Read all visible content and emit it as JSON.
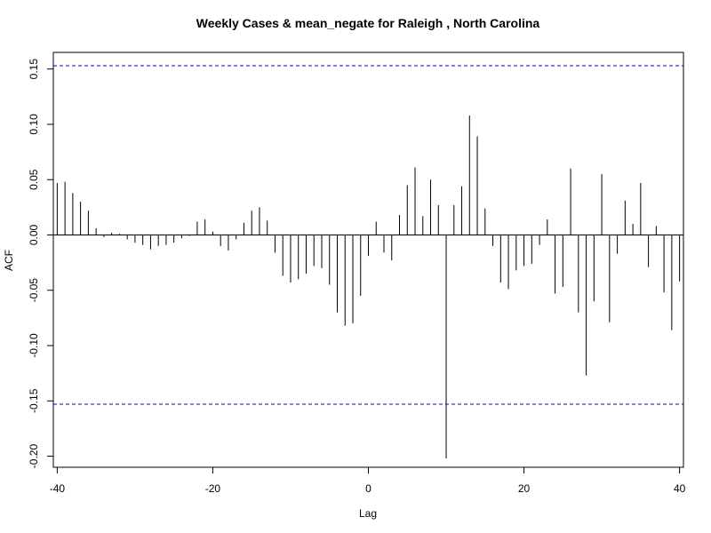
{
  "chart_data": {
    "type": "bar",
    "title": "Weekly Cases & mean_negate for Raleigh , North Carolina",
    "xlabel": "Lag",
    "ylabel": "ACF",
    "xlim": [
      -40.5,
      40.5
    ],
    "ylim": [
      -0.21,
      0.165
    ],
    "x_ticks": [
      -40,
      -20,
      0,
      20,
      40
    ],
    "y_ticks": [
      -0.2,
      -0.15,
      -0.1,
      -0.05,
      0.0,
      0.05,
      0.1,
      0.15
    ],
    "y_tick_labels": [
      "-0.20",
      "-0.15",
      "-0.10",
      "-0.05",
      "0.00",
      "0.05",
      "0.10",
      "0.15"
    ],
    "confidence_limits": [
      0.153,
      -0.153
    ],
    "confidence_color": "#0000cc",
    "bar_color": "#000000",
    "series": [
      {
        "lags": [
          -40,
          -39,
          -38,
          -37,
          -36,
          -35,
          -34,
          -33,
          -32,
          -31,
          -30,
          -29,
          -28,
          -27,
          -26,
          -25,
          -24,
          -23,
          -22,
          -21,
          -20,
          -19,
          -18,
          -17,
          -16,
          -15,
          -14,
          -13,
          -12,
          -11,
          -10,
          -9,
          -8,
          -7,
          -6,
          -5,
          -4,
          -3,
          -2,
          -1,
          0,
          1,
          2,
          3,
          4,
          5,
          6,
          7,
          8,
          9,
          10,
          11,
          12,
          13,
          14,
          15,
          16,
          17,
          18,
          19,
          20,
          21,
          22,
          23,
          24,
          25,
          26,
          27,
          28,
          29,
          30,
          31,
          32,
          33,
          34,
          35,
          36,
          37,
          38,
          39,
          40
        ],
        "values": [
          0.047,
          0.048,
          0.038,
          0.03,
          0.022,
          0.006,
          -0.002,
          0.002,
          0.001,
          -0.004,
          -0.007,
          -0.009,
          -0.013,
          -0.01,
          -0.009,
          -0.007,
          -0.003,
          -0.001,
          0.012,
          0.014,
          0.003,
          -0.01,
          -0.014,
          -0.004,
          0.011,
          0.022,
          0.025,
          0.013,
          -0.016,
          -0.037,
          -0.043,
          -0.04,
          -0.035,
          -0.028,
          -0.03,
          -0.045,
          -0.07,
          -0.082,
          -0.08,
          -0.055,
          -0.019,
          0.012,
          -0.016,
          -0.023,
          0.018,
          0.045,
          0.061,
          0.017,
          0.05,
          0.027,
          -0.202,
          0.027,
          0.044,
          0.108,
          0.089,
          0.024,
          -0.01,
          -0.043,
          -0.049,
          -0.032,
          -0.028,
          -0.026,
          -0.009,
          0.014,
          -0.053,
          -0.047,
          0.06,
          -0.07,
          -0.127,
          -0.06,
          0.055,
          -0.079,
          -0.017,
          0.031,
          0.01,
          0.047,
          -0.029,
          0.008,
          -0.052,
          -0.086,
          -0.042
        ]
      }
    ]
  }
}
